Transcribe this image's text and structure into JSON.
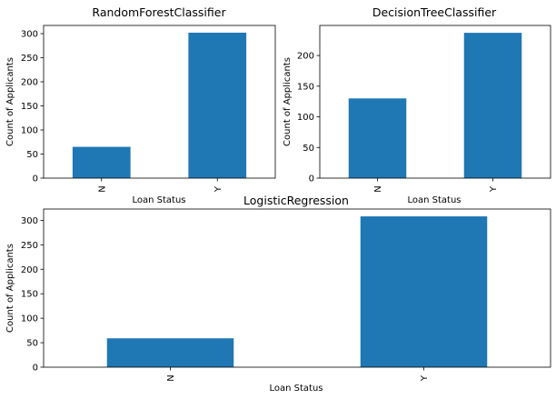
{
  "chart_data": [
    {
      "type": "bar",
      "title": "RandomForestClassifier",
      "xlabel": "Loan Status",
      "ylabel": "Count of Applicants",
      "categories": [
        "N",
        "Y"
      ],
      "values": [
        65,
        302
      ],
      "ylim": [
        0,
        317
      ],
      "yticks": [
        0,
        50,
        100,
        150,
        200,
        250,
        300
      ],
      "grid": false,
      "bar_color": "#1f77b4"
    },
    {
      "type": "bar",
      "title": "DecisionTreeClassifier",
      "xlabel": "Loan Status",
      "ylabel": "Count of Applicants",
      "categories": [
        "N",
        "Y"
      ],
      "values": [
        130,
        237
      ],
      "ylim": [
        0,
        249
      ],
      "yticks": [
        0,
        50,
        100,
        150,
        200
      ],
      "grid": false,
      "bar_color": "#1f77b4"
    },
    {
      "type": "bar",
      "title": "LogisticRegression",
      "xlabel": "Loan Status",
      "ylabel": "Count of Applicants",
      "categories": [
        "N",
        "Y"
      ],
      "values": [
        59,
        308
      ],
      "ylim": [
        0,
        323
      ],
      "yticks": [
        0,
        50,
        100,
        150,
        200,
        250,
        300
      ],
      "grid": false,
      "bar_color": "#1f77b4"
    }
  ]
}
